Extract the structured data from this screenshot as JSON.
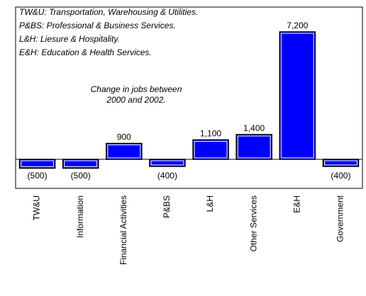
{
  "chart_data": {
    "type": "bar",
    "notes": [
      "TW&U: Transportation, Warehousing & Utilities.",
      "P&BS: Professional & Business Services.",
      "L&H: Liesure & Hospitality.",
      "E&H: Education & Health Services."
    ],
    "annotation": [
      "Change in jobs between",
      "2000 and 2002."
    ],
    "categories": [
      "TW&U",
      "Information",
      "Financial Activities",
      "P&BS",
      "L&H",
      "Other Services",
      "E&H",
      "Government"
    ],
    "values": [
      -500,
      -500,
      900,
      -400,
      1100,
      1400,
      7200,
      -400
    ],
    "value_labels": [
      "(500)",
      "(500)",
      "900",
      "(400)",
      "1,100",
      "1,400",
      "7,200",
      "(400)"
    ],
    "color": "#0000ff",
    "ylim": [
      -1640,
      8600
    ]
  }
}
